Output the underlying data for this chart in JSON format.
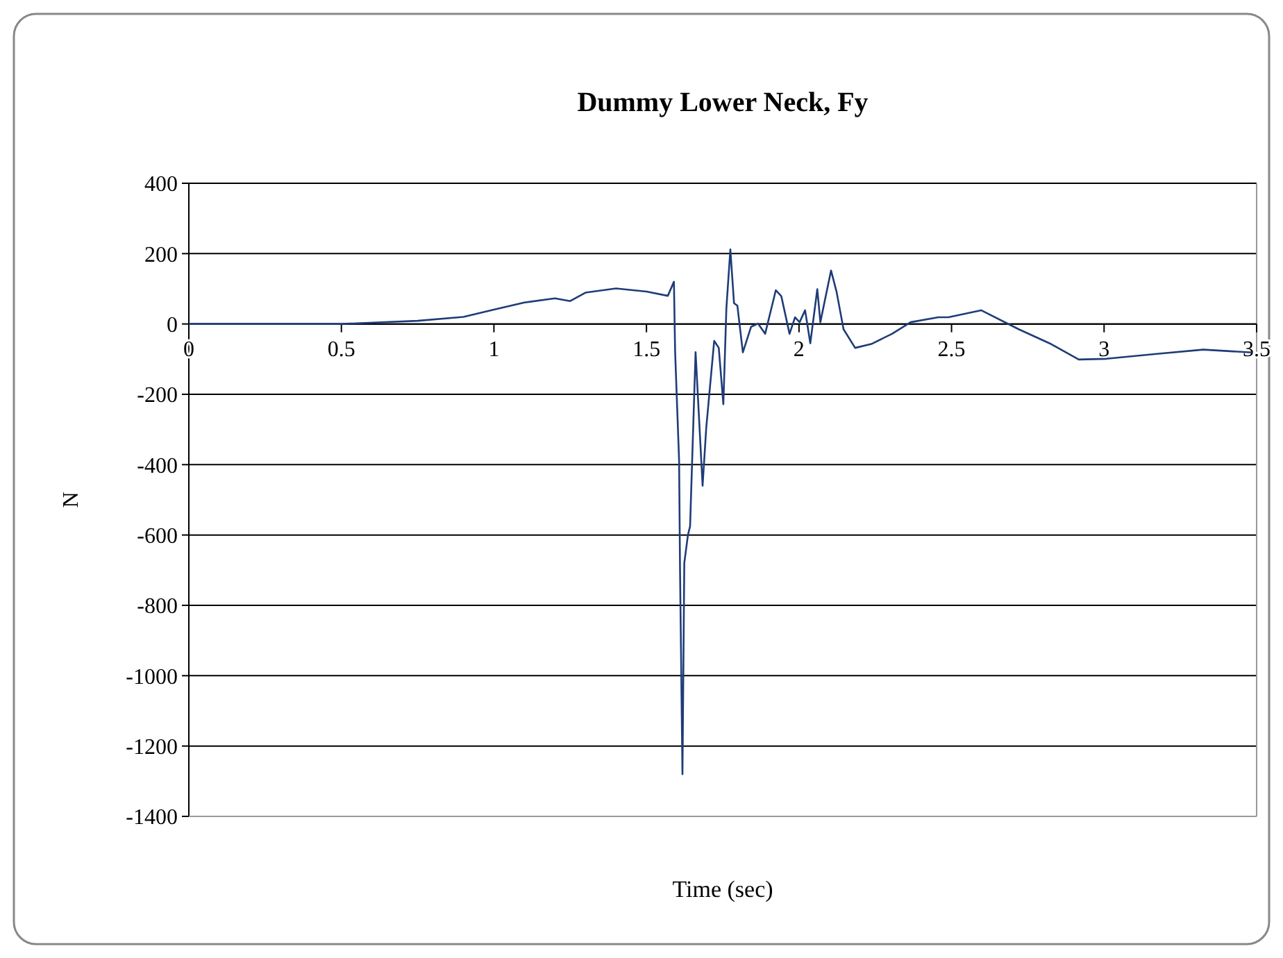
{
  "chart_data": {
    "type": "line",
    "title": "Dummy Lower Neck, Fy",
    "xlabel": "Time (sec)",
    "ylabel": "N",
    "xlim": [
      0,
      3.5
    ],
    "xticks": [
      0,
      0.5,
      1,
      1.5,
      2,
      2.5,
      3,
      3.5
    ],
    "ylim": [
      -1400,
      400
    ],
    "yticks": [
      -1400,
      -1200,
      -1000,
      -800,
      -600,
      -400,
      -200,
      0,
      200,
      400
    ],
    "grid": "y",
    "marker": "none",
    "line_style": "solid",
    "series": [
      {
        "color": "#1f3c78",
        "x": [
          0,
          0.5,
          0.75,
          0.9,
          1.0,
          1.1,
          1.2,
          1.25,
          1.3,
          1.4,
          1.5,
          1.57,
          1.59,
          1.594,
          1.607,
          1.61,
          1.618,
          1.624,
          1.636,
          1.643,
          1.661,
          1.684,
          1.696,
          1.722,
          1.737,
          1.752,
          1.762,
          1.775,
          1.787,
          1.798,
          1.816,
          1.843,
          1.866,
          1.889,
          1.924,
          1.942,
          1.969,
          1.987,
          2.002,
          2.02,
          2.037,
          2.06,
          2.07,
          2.105,
          2.123,
          2.146,
          2.184,
          2.237,
          2.305,
          2.366,
          2.457,
          2.49,
          2.597,
          2.72,
          2.826,
          2.917,
          3.008,
          3.173,
          3.325,
          3.485
        ],
        "values": [
          0,
          0,
          9,
          20,
          41,
          61,
          73,
          65,
          89,
          101,
          92,
          80,
          120,
          -80,
          -388,
          -695,
          -1280,
          -680,
          -600,
          -575,
          -80,
          -460,
          -295,
          -48,
          -68,
          -228,
          45,
          212,
          59,
          52,
          -81,
          -8,
          1,
          -28,
          96,
          79,
          -28,
          19,
          5,
          39,
          -55,
          99,
          5,
          152,
          92,
          -15,
          -68,
          -57,
          -28,
          5,
          19,
          19,
          39,
          -15,
          -57,
          -101,
          -99,
          -85,
          -73,
          -81
        ]
      }
    ]
  }
}
